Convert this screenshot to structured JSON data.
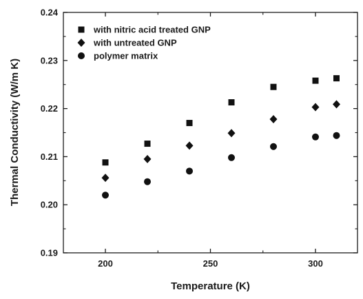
{
  "chart_data": {
    "type": "scatter",
    "title": "",
    "xlabel": "Temperature (K)",
    "ylabel": "Thermal Conductivity (W/m K)",
    "xlim": [
      180,
      320
    ],
    "ylim": [
      0.19,
      0.24
    ],
    "xticks": [
      200,
      250,
      300
    ],
    "yticks": [
      "0.19",
      "0.20",
      "0.21",
      "0.22",
      "0.23",
      "0.24"
    ],
    "grid": false,
    "legend_position": "top-left",
    "series": [
      {
        "name": "with nitric acid treated GNP",
        "marker": "square",
        "x": [
          200,
          220,
          240,
          260,
          280,
          300,
          310
        ],
        "y": [
          0.2088,
          0.2127,
          0.217,
          0.2213,
          0.2245,
          0.2258,
          0.2263
        ]
      },
      {
        "name": "with untreated GNP",
        "marker": "diamond",
        "x": [
          200,
          220,
          240,
          260,
          280,
          300,
          310
        ],
        "y": [
          0.2056,
          0.2095,
          0.2123,
          0.2149,
          0.2178,
          0.2203,
          0.2209
        ]
      },
      {
        "name": "polymer matrix",
        "marker": "circle",
        "x": [
          200,
          220,
          240,
          260,
          280,
          300,
          310
        ],
        "y": [
          0.202,
          0.2048,
          0.207,
          0.2098,
          0.2121,
          0.2141,
          0.2144
        ]
      }
    ]
  }
}
